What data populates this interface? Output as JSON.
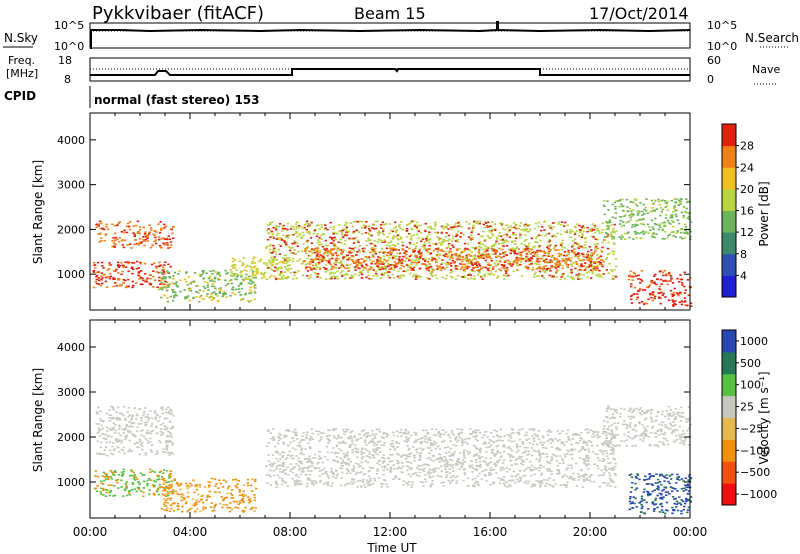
{
  "header": {
    "radar": "Pykkvibaer (fitACF)",
    "beam": "Beam 15",
    "date": "17/Oct/2014"
  },
  "strip_noise": {
    "left_label": "N.Sky",
    "left_ticks": [
      "10^5",
      "10^0"
    ],
    "right_label": "N.Search",
    "right_ticks": [
      "10^5",
      "10^0"
    ]
  },
  "strip_freq": {
    "left_label_1": "Freq.",
    "left_label_2": "[MHz]",
    "left_ticks": [
      "18",
      "8"
    ],
    "right_label": "Nave",
    "right_ticks": [
      "60",
      "0"
    ]
  },
  "cpid": {
    "label": "CPID",
    "value": "normal (fast stereo) 153"
  },
  "colors": {
    "power": [
      "#1f1fd6",
      "#2f4fb4",
      "#3c8a6a",
      "#6ab45a",
      "#b8d440",
      "#f0c020",
      "#f08018",
      "#e02010"
    ],
    "velocity": [
      "#ee1010",
      "#f05010",
      "#f09010",
      "#e8b850",
      "#c8c8c0",
      "#58c040",
      "#287858",
      "#2848b0"
    ]
  },
  "chart_data": [
    {
      "type": "heatmap",
      "name": "power",
      "xlabel": "",
      "ylabel": "Slant Range [km]",
      "xlim_hours": [
        0,
        24
      ],
      "ylim_km": [
        200,
        4600
      ],
      "yticks": [
        "1000",
        "2000",
        "3000",
        "4000"
      ],
      "colorbar_title": "Power [dB]",
      "colorbar_ticks": [
        "4",
        "8",
        "12",
        "16",
        "20",
        "24",
        "28"
      ],
      "regions": [
        {
          "t": [
            0.2,
            3.3
          ],
          "r": [
            1600,
            2200
          ],
          "c": [
            6,
            7
          ]
        },
        {
          "t": [
            0.1,
            3.2
          ],
          "r": [
            700,
            1300
          ],
          "c": [
            7,
            6
          ]
        },
        {
          "t": [
            2.7,
            6.6
          ],
          "r": [
            400,
            1100
          ],
          "c": [
            3,
            5
          ]
        },
        {
          "t": [
            5.5,
            8.0
          ],
          "r": [
            900,
            1400
          ],
          "c": [
            4,
            5
          ]
        },
        {
          "t": [
            7.0,
            21.0
          ],
          "r": [
            900,
            2200
          ],
          "c": [
            4,
            7
          ]
        },
        {
          "t": [
            8.5,
            20.5
          ],
          "r": [
            1100,
            1600
          ],
          "c": [
            6,
            7
          ]
        },
        {
          "t": [
            20.5,
            24.0
          ],
          "r": [
            1800,
            2700
          ],
          "c": [
            3,
            4
          ]
        },
        {
          "t": [
            21.5,
            24.0
          ],
          "r": [
            300,
            1100
          ],
          "c": [
            7,
            6
          ]
        }
      ]
    },
    {
      "type": "heatmap",
      "name": "velocity",
      "xlabel": "Time UT",
      "ylabel": "Slant Range [km]",
      "xlim_hours": [
        0,
        24
      ],
      "ylim_km": [
        200,
        4600
      ],
      "xticks": [
        "00:00",
        "04:00",
        "08:00",
        "12:00",
        "16:00",
        "20:00",
        "00:00"
      ],
      "yticks": [
        "1000",
        "2000",
        "3000",
        "4000"
      ],
      "colorbar_title": "Velocity [m s⁻¹]",
      "colorbar_ticks": [
        "1000",
        "500",
        "100",
        "25",
        "−25",
        "−100",
        "−500",
        "−1000"
      ],
      "regions": [
        {
          "t": [
            0.2,
            3.3
          ],
          "r": [
            1600,
            2700
          ],
          "c": [
            4,
            4
          ]
        },
        {
          "t": [
            0.1,
            3.3
          ],
          "r": [
            700,
            1300
          ],
          "c": [
            5,
            2
          ]
        },
        {
          "t": [
            2.8,
            6.6
          ],
          "r": [
            350,
            1100
          ],
          "c": [
            2,
            3
          ]
        },
        {
          "t": [
            7.0,
            21.0
          ],
          "r": [
            900,
            2200
          ],
          "c": [
            4,
            4
          ]
        },
        {
          "t": [
            21.5,
            24.0
          ],
          "r": [
            300,
            1200
          ],
          "c": [
            7,
            6
          ]
        },
        {
          "t": [
            20.5,
            24.0
          ],
          "r": [
            1800,
            2700
          ],
          "c": [
            4,
            4
          ]
        }
      ]
    }
  ]
}
